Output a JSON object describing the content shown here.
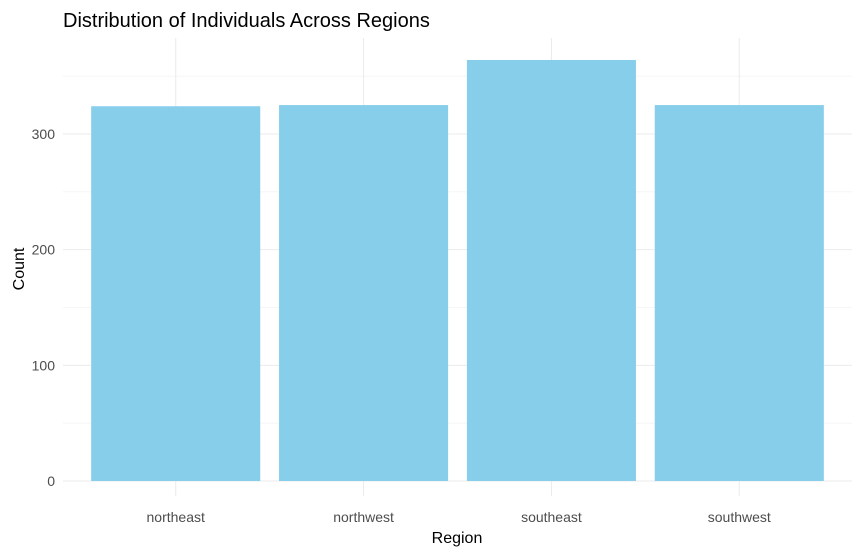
{
  "chart_data": {
    "type": "bar",
    "title": "Distribution of Individuals Across Regions",
    "xlabel": "Region",
    "ylabel": "Count",
    "categories": [
      "northeast",
      "northwest",
      "southeast",
      "southwest"
    ],
    "values": [
      324,
      325,
      364,
      325
    ],
    "ylim": [
      0,
      382
    ],
    "yticks": [
      0,
      100,
      200,
      300
    ],
    "ytick_labels": [
      "0",
      "100",
      "200",
      "300"
    ],
    "bar_color": "#87CEEB",
    "grid": true,
    "legend": "none"
  }
}
